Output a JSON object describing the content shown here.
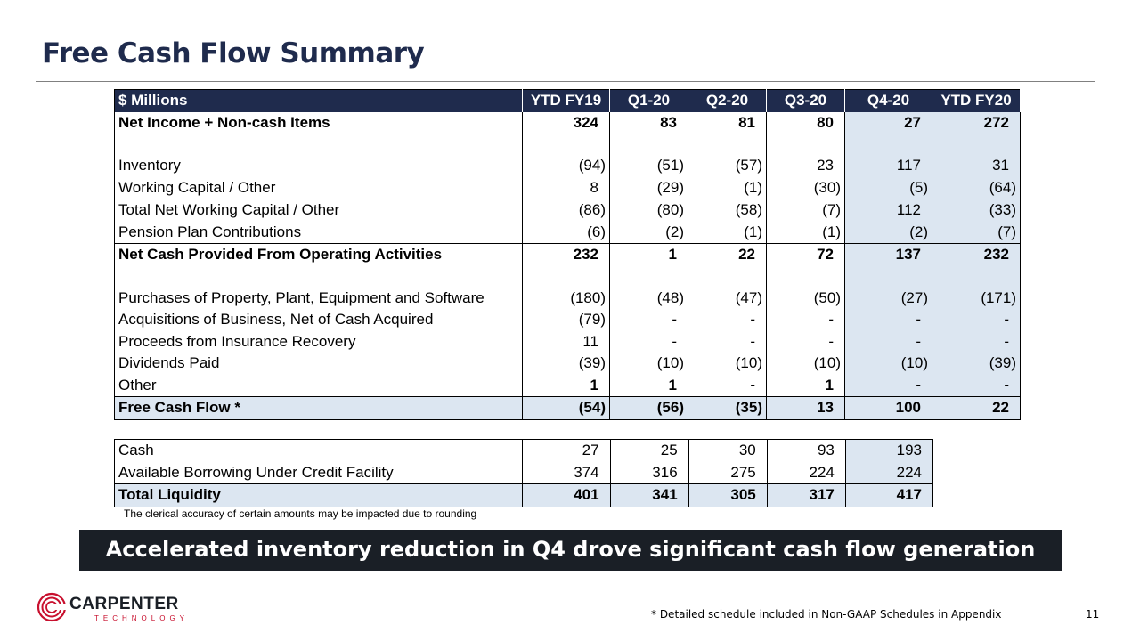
{
  "title": "Free Cash Flow Summary",
  "fcf_table": {
    "headers": [
      "$ Millions",
      "YTD FY19",
      "Q1-20",
      "Q2-20",
      "Q3-20",
      "Q4-20",
      "YTD FY20"
    ],
    "rows": [
      {
        "label": "Net Income + Non-cash Items",
        "values": [
          "324",
          "83",
          "81",
          "80",
          "27",
          "272"
        ]
      },
      {
        "label": "Inventory",
        "values": [
          "(94)",
          "(51)",
          "(57)",
          "23",
          "117",
          "31"
        ]
      },
      {
        "label": "Working Capital / Other",
        "values": [
          "8",
          "(29)",
          "(1)",
          "(30)",
          "(5)",
          "(64)"
        ]
      },
      {
        "label": "Total Net Working Capital / Other",
        "values": [
          "(86)",
          "(80)",
          "(58)",
          "(7)",
          "112",
          "(33)"
        ]
      },
      {
        "label": "Pension Plan Contributions",
        "values": [
          "(6)",
          "(2)",
          "(1)",
          "(1)",
          "(2)",
          "(7)"
        ]
      },
      {
        "label": "Net Cash Provided From Operating Activities",
        "values": [
          "232",
          "1",
          "22",
          "72",
          "137",
          "232"
        ]
      },
      {
        "label": "Purchases of Property, Plant, Equipment and Software",
        "values": [
          "(180)",
          "(48)",
          "(47)",
          "(50)",
          "(27)",
          "(171)"
        ]
      },
      {
        "label": "Acquisitions of Business, Net of Cash Acquired",
        "values": [
          "(79)",
          "-",
          "-",
          "-",
          "-",
          "-"
        ]
      },
      {
        "label": "Proceeds from Insurance Recovery",
        "values": [
          "11",
          "-",
          "-",
          "-",
          "-",
          "-"
        ]
      },
      {
        "label": "Dividends Paid",
        "values": [
          "(39)",
          "(10)",
          "(10)",
          "(10)",
          "(10)",
          "(39)"
        ]
      },
      {
        "label": "Other",
        "values": [
          "1",
          "1",
          "-",
          "1",
          "-",
          "-"
        ]
      },
      {
        "label": "Free Cash Flow *",
        "values": [
          "(54)",
          "(56)",
          "(35)",
          "13",
          "100",
          "22"
        ]
      }
    ]
  },
  "liquidity_table": {
    "rows": [
      {
        "label": "Cash",
        "values": [
          "27",
          "25",
          "30",
          "93",
          "193"
        ]
      },
      {
        "label": "Available Borrowing Under Credit Facility",
        "values": [
          "374",
          "316",
          "275",
          "224",
          "224"
        ]
      },
      {
        "label": "Total Liquidity",
        "values": [
          "401",
          "341",
          "305",
          "317",
          "417"
        ]
      }
    ]
  },
  "rounding_note": "The clerical accuracy of certain amounts may be impacted due to rounding",
  "banner": "Accelerated inventory reduction in Q4 drove significant cash flow generation",
  "logo": {
    "name": "CARPENTER",
    "sub": "TECHNOLOGY"
  },
  "footnote": "* Detailed schedule included in Non-GAAP Schedules in Appendix",
  "page_number": "11",
  "colors": {
    "header_bg": "#1f2b4d",
    "highlight": "#dce6f1",
    "banner_bg": "#1a1f26",
    "logo_red": "#c8102e"
  }
}
